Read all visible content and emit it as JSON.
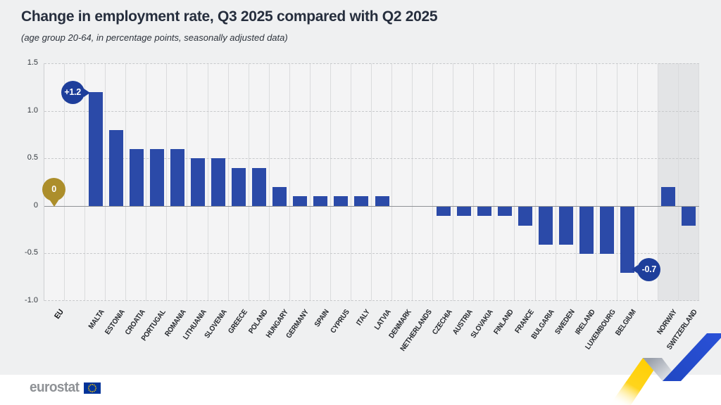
{
  "header": {
    "title": "Change in employment rate, Q3 2025 compared with Q2 2025",
    "subtitle": "(age group 20-64, in percentage points, seasonally adjusted data)"
  },
  "chart_data": {
    "type": "bar",
    "title": "Change in employment rate, Q3 2025 compared with Q2 2025",
    "subtitle": "(age group 20-64, in percentage points, seasonally adjusted data)",
    "xlabel": "",
    "ylabel": "percentage points",
    "ylim": [
      -1.0,
      1.5
    ],
    "yticks": [
      1.5,
      1.0,
      0.5,
      0,
      -0.5,
      -1.0
    ],
    "ytick_labels": [
      "1.5",
      "1.0",
      "0.5",
      "0",
      "-0.5",
      "-1.0"
    ],
    "grid": "horizontal dashed at 0.5 steps, solid zero line, vertical column separators",
    "legend": "none",
    "categories": [
      "EU",
      "MALTA",
      "ESTONIA",
      "CROATIA",
      "PORTUGAL",
      "ROMANIA",
      "LITHUANIA",
      "SLOVENIA",
      "GREECE",
      "POLAND",
      "HUNGARY",
      "GERMANY",
      "SPAIN",
      "CYPRUS",
      "ITALY",
      "LATVIA",
      "DENMARK",
      "NETHERLANDS",
      "CZECHIA",
      "AUSTRIA",
      "SLOVAKIA",
      "FINLAND",
      "FRANCE",
      "BULGARIA",
      "SWEDEN",
      "IRELAND",
      "LUXEMBOURG",
      "BELGIUM",
      "NORWAY",
      "SWITZERLAND"
    ],
    "values": [
      0,
      1.2,
      0.8,
      0.6,
      0.6,
      0.6,
      0.5,
      0.5,
      0.4,
      0.4,
      0.2,
      0.1,
      0.1,
      0.1,
      0.1,
      0.1,
      0,
      0,
      -0.1,
      -0.1,
      -0.1,
      -0.1,
      -0.2,
      -0.4,
      -0.4,
      -0.5,
      -0.5,
      -0.7,
      0.2,
      -0.2
    ],
    "gaps_after": [
      "EU",
      "BELGIUM"
    ],
    "band_categories": [
      "NORWAY",
      "SWITZERLAND"
    ],
    "bold_categories": [
      "EU"
    ],
    "annotations": [
      {
        "category": "EU",
        "label": "0",
        "value": 0,
        "color": "gold",
        "tail": "down"
      },
      {
        "category": "MALTA",
        "label": "+1.2",
        "value": 1.2,
        "color": "blue",
        "tail": "right"
      },
      {
        "category": "BELGIUM",
        "label": "-0.7",
        "value": -0.7,
        "color": "blue",
        "tail": "left"
      }
    ]
  },
  "colors": {
    "bar": "#2b4aa8",
    "badge_blue": "#1e3e9b",
    "badge_gold": "#ac8e2b",
    "band": "#e3e4e6",
    "ribbon_yellow": "#ffcf00",
    "ribbon_blue": "#2950d6",
    "flag_blue": "#003399",
    "flag_star": "#ffcc00"
  },
  "footer": {
    "logo_text": "eurostat"
  }
}
